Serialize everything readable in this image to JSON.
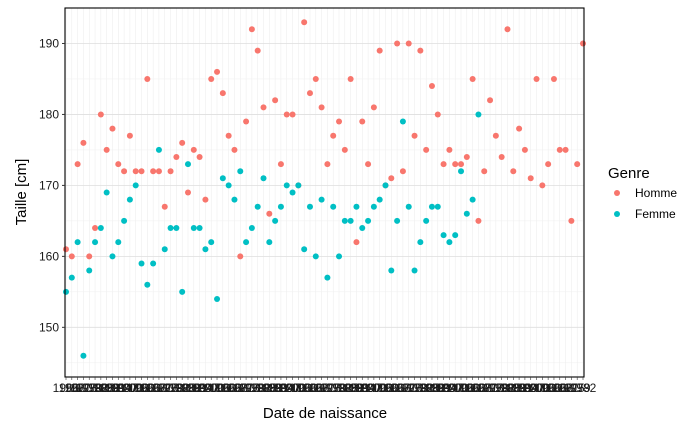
{
  "chart_data": {
    "type": "scatter",
    "xlabel": "Date de naissance",
    "ylabel": "Taille  [cm]",
    "ylim": [
      143,
      195
    ],
    "yticks": [
      150,
      160,
      170,
      180,
      190
    ],
    "grid": true,
    "legend": {
      "title": "Genre",
      "placement": "right",
      "entries": [
        "Homme",
        "Femme"
      ]
    },
    "x_tick_labels_note": "dense overlapping date labels (illegible)",
    "colors": {
      "Homme": "#F8766D",
      "Femme": "#00BFC4"
    },
    "series": [
      {
        "name": "Homme",
        "points": [
          [
            1,
            161
          ],
          [
            2,
            160
          ],
          [
            3,
            173
          ],
          [
            4,
            176
          ],
          [
            5,
            160
          ],
          [
            6,
            164
          ],
          [
            7,
            180
          ],
          [
            8,
            175
          ],
          [
            9,
            178
          ],
          [
            10,
            173
          ],
          [
            11,
            172
          ],
          [
            12,
            177
          ],
          [
            13,
            172
          ],
          [
            14,
            172
          ],
          [
            15,
            185
          ],
          [
            16,
            172
          ],
          [
            17,
            172
          ],
          [
            18,
            167
          ],
          [
            19,
            172
          ],
          [
            20,
            174
          ],
          [
            21,
            176
          ],
          [
            22,
            169
          ],
          [
            23,
            175
          ],
          [
            24,
            174
          ],
          [
            25,
            168
          ],
          [
            26,
            185
          ],
          [
            27,
            186
          ],
          [
            28,
            183
          ],
          [
            29,
            177
          ],
          [
            30,
            175
          ],
          [
            31,
            160
          ],
          [
            32,
            179
          ],
          [
            33,
            192
          ],
          [
            34,
            189
          ],
          [
            35,
            181
          ],
          [
            36,
            166
          ],
          [
            37,
            182
          ],
          [
            38,
            173
          ],
          [
            39,
            180
          ],
          [
            40,
            180
          ],
          [
            41,
            170
          ],
          [
            42,
            193
          ],
          [
            43,
            183
          ],
          [
            44,
            185
          ],
          [
            45,
            181
          ],
          [
            46,
            173
          ],
          [
            47,
            177
          ],
          [
            48,
            179
          ],
          [
            49,
            175
          ],
          [
            50,
            185
          ],
          [
            51,
            162
          ],
          [
            52,
            179
          ],
          [
            53,
            173
          ],
          [
            54,
            181
          ],
          [
            55,
            189
          ],
          [
            56,
            170
          ],
          [
            57,
            171
          ],
          [
            58,
            190
          ],
          [
            59,
            172
          ],
          [
            60,
            190
          ],
          [
            61,
            177
          ],
          [
            62,
            189
          ],
          [
            63,
            175
          ],
          [
            64,
            184
          ],
          [
            65,
            180
          ],
          [
            66,
            173
          ],
          [
            67,
            175
          ],
          [
            68,
            173
          ],
          [
            69,
            173
          ],
          [
            70,
            174
          ],
          [
            71,
            185
          ],
          [
            72,
            165
          ],
          [
            73,
            172
          ],
          [
            74,
            182
          ],
          [
            75,
            177
          ],
          [
            76,
            174
          ],
          [
            77,
            192
          ],
          [
            78,
            172
          ],
          [
            79,
            178
          ],
          [
            80,
            175
          ],
          [
            81,
            171
          ],
          [
            82,
            185
          ],
          [
            83,
            170
          ],
          [
            84,
            173
          ],
          [
            85,
            185
          ],
          [
            86,
            175
          ],
          [
            87,
            175
          ],
          [
            88,
            165
          ],
          [
            89,
            173
          ],
          [
            90,
            190
          ]
        ]
      },
      {
        "name": "Femme",
        "points": [
          [
            1,
            155
          ],
          [
            2,
            157
          ],
          [
            3,
            162
          ],
          [
            4,
            146
          ],
          [
            5,
            158
          ],
          [
            6,
            162
          ],
          [
            7,
            164
          ],
          [
            8,
            169
          ],
          [
            9,
            160
          ],
          [
            10,
            162
          ],
          [
            11,
            165
          ],
          [
            12,
            168
          ],
          [
            13,
            170
          ],
          [
            14,
            159
          ],
          [
            15,
            156
          ],
          [
            16,
            159
          ],
          [
            17,
            175
          ],
          [
            18,
            161
          ],
          [
            19,
            164
          ],
          [
            20,
            164
          ],
          [
            21,
            155
          ],
          [
            22,
            173
          ],
          [
            23,
            164
          ],
          [
            24,
            164
          ],
          [
            25,
            161
          ],
          [
            26,
            162
          ],
          [
            27,
            154
          ],
          [
            28,
            171
          ],
          [
            29,
            170
          ],
          [
            30,
            168
          ],
          [
            31,
            172
          ],
          [
            32,
            162
          ],
          [
            33,
            164
          ],
          [
            34,
            167
          ],
          [
            35,
            171
          ],
          [
            36,
            162
          ],
          [
            37,
            165
          ],
          [
            38,
            167
          ],
          [
            39,
            170
          ],
          [
            40,
            169
          ],
          [
            41,
            170
          ],
          [
            42,
            161
          ],
          [
            43,
            167
          ],
          [
            44,
            160
          ],
          [
            45,
            168
          ],
          [
            46,
            157
          ],
          [
            47,
            167
          ],
          [
            48,
            160
          ],
          [
            49,
            165
          ],
          [
            50,
            165
          ],
          [
            51,
            167
          ],
          [
            52,
            164
          ],
          [
            53,
            165
          ],
          [
            54,
            167
          ],
          [
            55,
            168
          ],
          [
            56,
            170
          ],
          [
            57,
            158
          ],
          [
            58,
            165
          ],
          [
            59,
            179
          ],
          [
            60,
            167
          ],
          [
            61,
            158
          ],
          [
            62,
            162
          ],
          [
            63,
            165
          ],
          [
            64,
            167
          ],
          [
            65,
            167
          ],
          [
            66,
            163
          ],
          [
            67,
            162
          ],
          [
            68,
            163
          ],
          [
            69,
            172
          ],
          [
            70,
            166
          ],
          [
            71,
            168
          ],
          [
            72,
            180
          ]
        ]
      }
    ]
  }
}
